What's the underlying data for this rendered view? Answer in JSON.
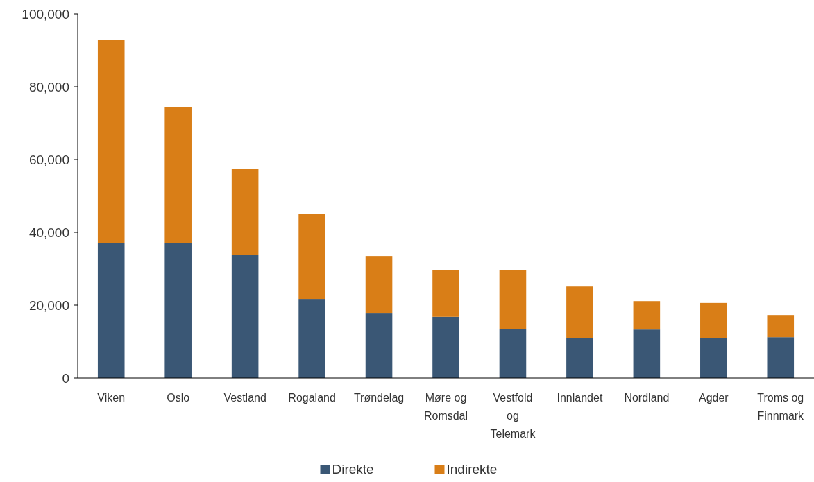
{
  "chart_data": {
    "type": "bar",
    "stacked": true,
    "categories": [
      "Viken",
      "Oslo",
      "Vestland",
      "Rogaland",
      "Trøndelag",
      "Møre og Romsdal",
      "Vestfold og Telemark",
      "Innlandet",
      "Nordland",
      "Agder",
      "Troms og Finnmark"
    ],
    "series": [
      {
        "name": "Direkte",
        "color": "#3a5775",
        "values": [
          37100,
          37100,
          33900,
          21700,
          17700,
          16800,
          13500,
          10900,
          13300,
          10900,
          11200
        ]
      },
      {
        "name": "Indirekte",
        "color": "#d97e17",
        "values": [
          55700,
          37200,
          23600,
          23300,
          15800,
          12900,
          16200,
          14200,
          7800,
          9700,
          6100
        ]
      }
    ],
    "ylim": [
      0,
      100000
    ],
    "yticks": [
      {
        "value": 0,
        "label": "0"
      },
      {
        "value": 20000,
        "label": "20,000"
      },
      {
        "value": 40000,
        "label": "40,000"
      },
      {
        "value": 60000,
        "label": "60,000"
      },
      {
        "value": 80000,
        "label": "80,000"
      },
      {
        "value": 100000,
        "label": "100,000"
      }
    ],
    "legend": "bottom"
  }
}
